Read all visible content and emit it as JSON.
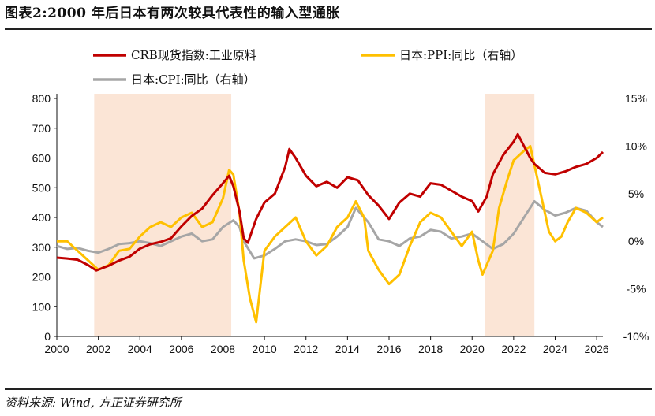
{
  "title": "图表2:2000 年后日本有两次较具代表性的输入型通胀",
  "source": "资料来源: Wind, 方正证券研究所",
  "chart_data": {
    "type": "line",
    "title": "图表2:2000 年后日本有两次较具代表性的输入型通胀",
    "x_range": [
      2000,
      2026.3
    ],
    "x_ticks": [
      2000,
      2002,
      2004,
      2006,
      2008,
      2010,
      2012,
      2014,
      2016,
      2018,
      2020,
      2022,
      2024,
      2026
    ],
    "left_axis": {
      "ylim": [
        0,
        800
      ],
      "ticks": [
        0,
        100,
        200,
        300,
        400,
        500,
        600,
        700,
        800
      ]
    },
    "right_axis": {
      "ylim": [
        -10,
        15
      ],
      "ticks": [
        "15%",
        "10%",
        "5%",
        "0%",
        "-5%",
        "-10%"
      ],
      "tick_values": [
        15,
        10,
        5,
        0,
        -5,
        -10
      ]
    },
    "shaded_periods": [
      [
        2001.8,
        2008.4
      ],
      [
        2020.6,
        2023.0
      ]
    ],
    "legend_placement": "top",
    "colors": {
      "crb": "#c00000",
      "ppi": "#ffc000",
      "cpi": "#a6a6a6",
      "shade": "#fbe5d6"
    },
    "series": [
      {
        "name": "CRB现货指数:工业原料",
        "axis": "left",
        "color": "#c00000",
        "points": [
          [
            2000.0,
            265
          ],
          [
            2000.5,
            262
          ],
          [
            2001.0,
            258
          ],
          [
            2001.5,
            240
          ],
          [
            2001.9,
            222
          ],
          [
            2002.5,
            238
          ],
          [
            2003.0,
            255
          ],
          [
            2003.5,
            268
          ],
          [
            2004.0,
            295
          ],
          [
            2004.5,
            310
          ],
          [
            2005.0,
            318
          ],
          [
            2005.5,
            330
          ],
          [
            2006.0,
            370
          ],
          [
            2006.5,
            405
          ],
          [
            2007.0,
            430
          ],
          [
            2007.5,
            475
          ],
          [
            2008.0,
            515
          ],
          [
            2008.3,
            540
          ],
          [
            2008.5,
            505
          ],
          [
            2008.8,
            420
          ],
          [
            2009.0,
            330
          ],
          [
            2009.2,
            315
          ],
          [
            2009.6,
            395
          ],
          [
            2010.0,
            450
          ],
          [
            2010.5,
            480
          ],
          [
            2011.0,
            570
          ],
          [
            2011.2,
            630
          ],
          [
            2011.5,
            600
          ],
          [
            2012.0,
            540
          ],
          [
            2012.5,
            505
          ],
          [
            2013.0,
            520
          ],
          [
            2013.5,
            500
          ],
          [
            2014.0,
            535
          ],
          [
            2014.5,
            525
          ],
          [
            2015.0,
            475
          ],
          [
            2015.5,
            440
          ],
          [
            2016.0,
            395
          ],
          [
            2016.5,
            450
          ],
          [
            2017.0,
            480
          ],
          [
            2017.5,
            470
          ],
          [
            2018.0,
            515
          ],
          [
            2018.5,
            510
          ],
          [
            2019.0,
            490
          ],
          [
            2019.5,
            470
          ],
          [
            2020.0,
            455
          ],
          [
            2020.3,
            420
          ],
          [
            2020.7,
            470
          ],
          [
            2021.0,
            545
          ],
          [
            2021.5,
            610
          ],
          [
            2022.0,
            655
          ],
          [
            2022.2,
            680
          ],
          [
            2022.5,
            640
          ],
          [
            2022.8,
            600
          ],
          [
            2023.0,
            580
          ],
          [
            2023.5,
            550
          ],
          [
            2024.0,
            545
          ],
          [
            2024.5,
            555
          ],
          [
            2025.0,
            570
          ],
          [
            2025.5,
            580
          ],
          [
            2026.0,
            600
          ],
          [
            2026.3,
            620
          ]
        ]
      },
      {
        "name": "日本:PPI:同比（右轴）",
        "axis": "right",
        "color": "#ffc000",
        "points": [
          [
            2000.0,
            0.0
          ],
          [
            2000.5,
            0.0
          ],
          [
            2001.0,
            -1.0
          ],
          [
            2001.5,
            -2.0
          ],
          [
            2002.0,
            -3.0
          ],
          [
            2002.5,
            -2.5
          ],
          [
            2003.0,
            -1.0
          ],
          [
            2003.5,
            -0.8
          ],
          [
            2004.0,
            0.5
          ],
          [
            2004.5,
            1.5
          ],
          [
            2005.0,
            2.0
          ],
          [
            2005.5,
            1.5
          ],
          [
            2006.0,
            2.5
          ],
          [
            2006.5,
            3.0
          ],
          [
            2007.0,
            1.5
          ],
          [
            2007.5,
            2.0
          ],
          [
            2008.0,
            4.5
          ],
          [
            2008.3,
            7.5
          ],
          [
            2008.5,
            7.0
          ],
          [
            2008.8,
            3.0
          ],
          [
            2009.0,
            -2.0
          ],
          [
            2009.3,
            -6.0
          ],
          [
            2009.6,
            -8.5
          ],
          [
            2010.0,
            -1.0
          ],
          [
            2010.5,
            0.5
          ],
          [
            2011.0,
            1.5
          ],
          [
            2011.5,
            2.5
          ],
          [
            2012.0,
            0.0
          ],
          [
            2012.5,
            -1.5
          ],
          [
            2013.0,
            -0.5
          ],
          [
            2013.5,
            1.5
          ],
          [
            2014.0,
            2.5
          ],
          [
            2014.4,
            4.2
          ],
          [
            2014.8,
            2.5
          ],
          [
            2015.0,
            -1.0
          ],
          [
            2015.5,
            -3.0
          ],
          [
            2016.0,
            -4.5
          ],
          [
            2016.5,
            -3.5
          ],
          [
            2017.0,
            -0.5
          ],
          [
            2017.5,
            2.0
          ],
          [
            2018.0,
            3.0
          ],
          [
            2018.5,
            2.5
          ],
          [
            2019.0,
            1.0
          ],
          [
            2019.5,
            -0.5
          ],
          [
            2020.0,
            1.0
          ],
          [
            2020.3,
            -2.0
          ],
          [
            2020.5,
            -3.5
          ],
          [
            2020.8,
            -2.0
          ],
          [
            2021.0,
            -1.0
          ],
          [
            2021.3,
            3.5
          ],
          [
            2021.7,
            6.5
          ],
          [
            2022.0,
            8.5
          ],
          [
            2022.5,
            9.5
          ],
          [
            2022.8,
            10.0
          ],
          [
            2023.0,
            8.0
          ],
          [
            2023.3,
            5.0
          ],
          [
            2023.7,
            1.0
          ],
          [
            2024.0,
            0.0
          ],
          [
            2024.3,
            0.5
          ],
          [
            2024.6,
            2.0
          ],
          [
            2025.0,
            3.5
          ],
          [
            2025.5,
            3.0
          ],
          [
            2026.0,
            2.0
          ],
          [
            2026.3,
            2.5
          ]
        ]
      },
      {
        "name": "日本:CPI:同比（右轴）",
        "axis": "right",
        "color": "#a6a6a6",
        "points": [
          [
            2000.0,
            -0.5
          ],
          [
            2000.5,
            -0.8
          ],
          [
            2001.0,
            -0.7
          ],
          [
            2001.5,
            -1.0
          ],
          [
            2002.0,
            -1.2
          ],
          [
            2002.5,
            -0.8
          ],
          [
            2003.0,
            -0.3
          ],
          [
            2003.5,
            -0.2
          ],
          [
            2004.0,
            0.0
          ],
          [
            2004.5,
            -0.2
          ],
          [
            2005.0,
            -0.5
          ],
          [
            2005.5,
            0.0
          ],
          [
            2006.0,
            0.5
          ],
          [
            2006.5,
            0.8
          ],
          [
            2007.0,
            0.0
          ],
          [
            2007.5,
            0.2
          ],
          [
            2008.0,
            1.5
          ],
          [
            2008.5,
            2.2
          ],
          [
            2008.8,
            1.5
          ],
          [
            2009.0,
            0.0
          ],
          [
            2009.5,
            -1.8
          ],
          [
            2010.0,
            -1.5
          ],
          [
            2010.5,
            -0.8
          ],
          [
            2011.0,
            0.0
          ],
          [
            2011.5,
            0.2
          ],
          [
            2012.0,
            0.0
          ],
          [
            2012.5,
            -0.4
          ],
          [
            2013.0,
            -0.3
          ],
          [
            2013.5,
            0.5
          ],
          [
            2014.0,
            1.5
          ],
          [
            2014.4,
            3.5
          ],
          [
            2014.8,
            2.5
          ],
          [
            2015.0,
            2.0
          ],
          [
            2015.5,
            0.2
          ],
          [
            2016.0,
            0.0
          ],
          [
            2016.5,
            -0.5
          ],
          [
            2017.0,
            0.3
          ],
          [
            2017.5,
            0.5
          ],
          [
            2018.0,
            1.2
          ],
          [
            2018.5,
            1.0
          ],
          [
            2019.0,
            0.3
          ],
          [
            2019.5,
            0.5
          ],
          [
            2020.0,
            0.8
          ],
          [
            2020.5,
            0.0
          ],
          [
            2021.0,
            -0.8
          ],
          [
            2021.5,
            -0.3
          ],
          [
            2022.0,
            0.8
          ],
          [
            2022.5,
            2.5
          ],
          [
            2023.0,
            4.2
          ],
          [
            2023.5,
            3.3
          ],
          [
            2024.0,
            2.7
          ],
          [
            2024.5,
            3.0
          ],
          [
            2025.0,
            3.5
          ],
          [
            2025.5,
            3.2
          ],
          [
            2026.0,
            2.0
          ],
          [
            2026.3,
            1.5
          ]
        ]
      }
    ]
  }
}
